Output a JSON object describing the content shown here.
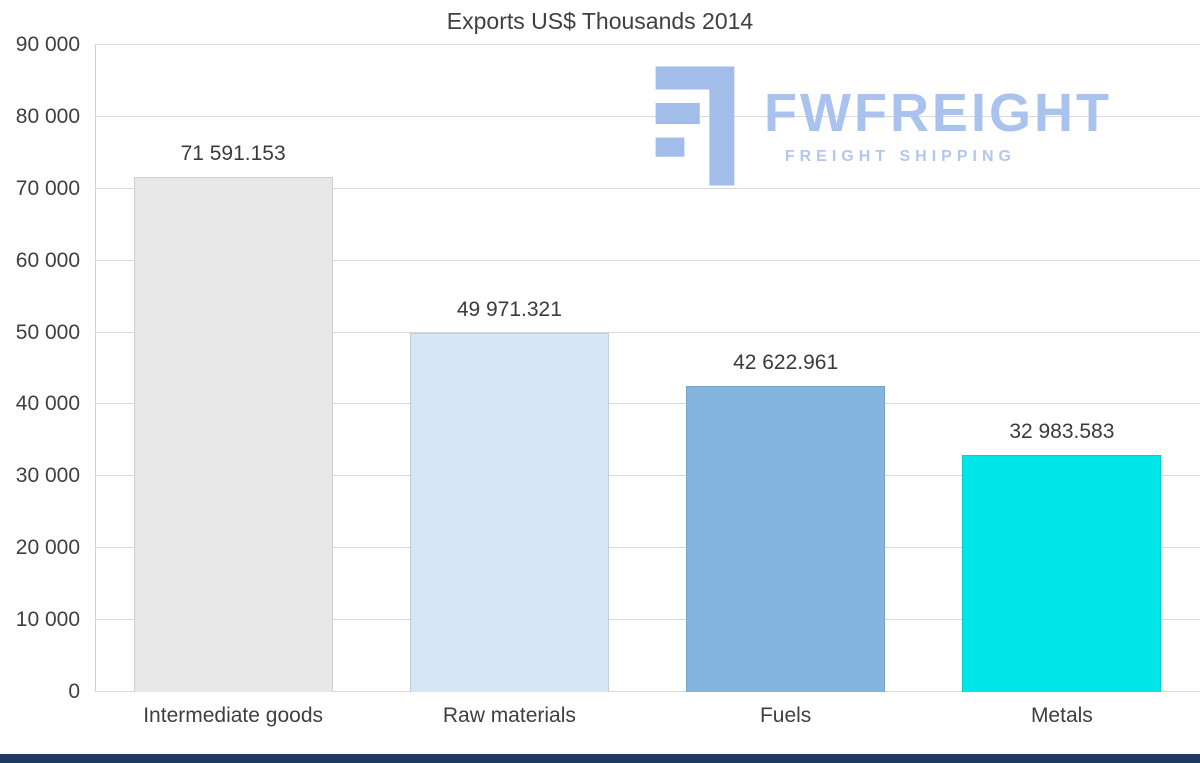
{
  "title": "Exports US$ Thousands 2014",
  "logo": {
    "name": "FWFREIGHT",
    "tagline": "FREIGHT SHIPPING",
    "name_color": "#a9c2ee",
    "tagline_color": "#b3c7ee",
    "icon_color": "#a3bdeb",
    "icon": "fwfreight-f-block-icon"
  },
  "chart_data": {
    "type": "bar",
    "title": "Exports US$ Thousands 2014",
    "categories": [
      "Intermediate goods",
      "Raw materials",
      "Fuels",
      "Metals"
    ],
    "values": [
      71591.153,
      49971.321,
      42622.961,
      32983.583
    ],
    "value_labels": [
      "71 591.153",
      "49 971.321",
      "42 622.961",
      "32 983.583"
    ],
    "bar_colors": [
      "#e8e8e8",
      "#d8e5f5",
      "#84b5df",
      "#00e6e8"
    ],
    "xlabel": "",
    "ylabel": "",
    "ylim": [
      0,
      90000
    ],
    "ytick_step": 10000,
    "ytick_labels": [
      "0",
      "10 000",
      "20 000",
      "30 000",
      "40 000",
      "50 000",
      "60 000",
      "70 000",
      "80 000",
      "90 000"
    ],
    "grid": true,
    "gridline_color": "#d9d9d9",
    "legend": false
  },
  "footer_bar_color": "#1f3864"
}
